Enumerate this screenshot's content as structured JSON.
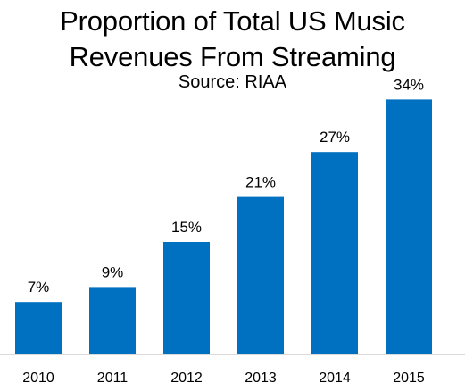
{
  "chart_data": {
    "type": "bar",
    "title": "Proportion of Total US Music Revenues From Streaming",
    "subtitle": "Source: RIAA",
    "xlabel": "",
    "ylabel": "",
    "categories": [
      "2010",
      "2011",
      "2012",
      "2013",
      "2014",
      "2015"
    ],
    "values": [
      7,
      9,
      15,
      21,
      27,
      34
    ],
    "data_labels": [
      "7%",
      "9%",
      "15%",
      "21%",
      "27%",
      "34%"
    ],
    "ylim": [
      0,
      36
    ],
    "grid": false,
    "legend": "none",
    "bar_color": "#0070C0"
  }
}
